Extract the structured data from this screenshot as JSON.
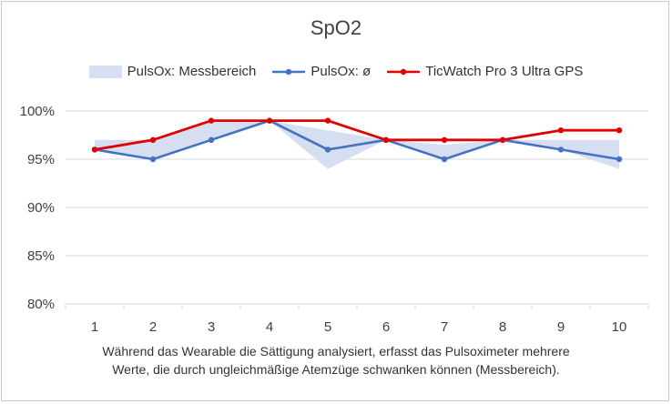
{
  "chart_data": {
    "type": "line",
    "title": "SpO2",
    "categories": [
      "1",
      "2",
      "3",
      "4",
      "5",
      "6",
      "7",
      "8",
      "9",
      "10"
    ],
    "y_ticks": [
      "80%",
      "85%",
      "90%",
      "95%",
      "100%"
    ],
    "ylim": [
      80,
      100
    ],
    "grid": true,
    "legend_position": "top",
    "range_band": {
      "name": "PulsOx: Messbereich",
      "low": [
        96,
        95,
        97,
        99,
        94,
        97,
        95,
        97,
        96,
        94
      ],
      "high": [
        97,
        97,
        99,
        99,
        98,
        97,
        96.5,
        97,
        97,
        97
      ]
    },
    "series": [
      {
        "name": "PulsOx: ø",
        "values": [
          96,
          95,
          97,
          99,
          96,
          97,
          95,
          97,
          96,
          95
        ]
      },
      {
        "name": "TicWatch Pro 3 Ultra GPS",
        "values": [
          96,
          97,
          99,
          99,
          99,
          97,
          97,
          97,
          98,
          98
        ]
      }
    ],
    "caption_lines": [
      "Während das Wearable die Sättigung analysiert, erfasst das Pulsoximeter mehrere",
      "Werte, die durch ungleichmäßige Atemzüge schwanken können (Messbereich)."
    ]
  },
  "colors": {
    "band": "#d6dff2",
    "avg_line": "#4472c4",
    "watch_line": "#e00000",
    "grid": "#d9d9d9",
    "axis_text": "#404040"
  }
}
